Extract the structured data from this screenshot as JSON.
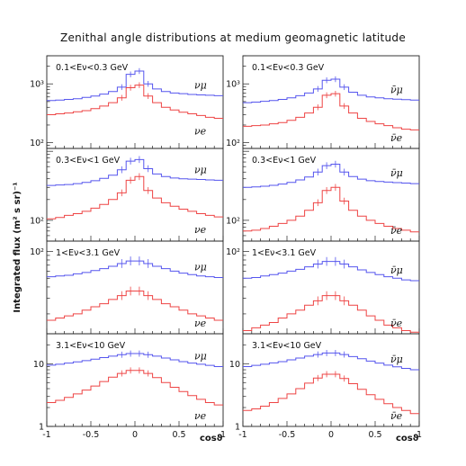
{
  "chart_data": {
    "type": "line",
    "title": "Zenithal angle distributions at medium geomagnetic latitude",
    "xlabel": "cosϑ",
    "ylabel": "Integrated flux (m² s sr)⁻¹",
    "xlim": [
      -1,
      1
    ],
    "x_ticks": [
      "-1",
      "-0.5",
      "0",
      "0.5",
      "1"
    ],
    "y_scale": "log",
    "legend_placement": "inline labels at right of each curve",
    "colors": {
      "numu": "#5555ee",
      "nue": "#ee4444"
    },
    "bin_centers": [
      -0.95,
      -0.85,
      -0.75,
      -0.65,
      -0.55,
      -0.45,
      -0.35,
      -0.25,
      -0.15,
      -0.05,
      0.05,
      0.15,
      0.25,
      0.35,
      0.45,
      0.55,
      0.65,
      0.75,
      0.85,
      0.95
    ],
    "panels": [
      {
        "energy_label": "0.1<Eν<0.3 GeV",
        "particle": "neutrino",
        "ylim": [
          80,
          3000
        ],
        "yticks": [
          {
            "v": 100,
            "t": "10²"
          },
          {
            "v": 1000,
            "t": "10³"
          }
        ],
        "series": [
          {
            "name": "νμ",
            "color_key": "numu",
            "values": [
              520,
              530,
              545,
              560,
              590,
              620,
              670,
              740,
              880,
              1450,
              1650,
              1000,
              820,
              740,
              700,
              680,
              660,
              650,
              640,
              630
            ]
          },
          {
            "name": "νe",
            "color_key": "nue",
            "values": [
              300,
              310,
              320,
              335,
              350,
              380,
              420,
              480,
              580,
              860,
              950,
              620,
              480,
              400,
              360,
              330,
              310,
              290,
              270,
              260
            ]
          }
        ]
      },
      {
        "energy_label": "0.1<Eν<0.3 GeV",
        "particle": "antineutrino",
        "ylim": [
          80,
          3000
        ],
        "yticks": [
          {
            "v": 100,
            "t": "10²"
          },
          {
            "v": 1000,
            "t": "10³"
          }
        ],
        "series": [
          {
            "name": "ν̄μ",
            "color_key": "numu",
            "values": [
              480,
              490,
              505,
              520,
              545,
              580,
              630,
              700,
              820,
              1150,
              1200,
              880,
              720,
              640,
              600,
              580,
              560,
              550,
              540,
              530
            ]
          },
          {
            "name": "ν̄e",
            "color_key": "nue",
            "values": [
              190,
              195,
              200,
              210,
              220,
              240,
              270,
              320,
              400,
              640,
              680,
              420,
              320,
              260,
              230,
              210,
              195,
              180,
              170,
              165
            ]
          }
        ]
      },
      {
        "energy_label": "0.3<Eν<1 GeV",
        "particle": "neutrino",
        "ylim": [
          50,
          1100
        ],
        "yticks": [
          {
            "v": 100,
            "t": "10²"
          }
        ],
        "series": [
          {
            "name": "νμ",
            "color_key": "numu",
            "values": [
              320,
              325,
              330,
              340,
              355,
              375,
              405,
              450,
              540,
              720,
              760,
              560,
              470,
              430,
              410,
              400,
              395,
              390,
              385,
              380
            ]
          },
          {
            "name": "νe",
            "color_key": "nue",
            "values": [
              105,
              110,
              118,
              125,
              135,
              150,
              170,
              200,
              250,
              380,
              430,
              270,
              210,
              180,
              160,
              145,
              135,
              125,
              118,
              112
            ]
          }
        ]
      },
      {
        "energy_label": "0.3<Eν<1 GeV",
        "particle": "antineutrino",
        "ylim": [
          50,
          1100
        ],
        "yticks": [
          {
            "v": 100,
            "t": "10²"
          }
        ],
        "series": [
          {
            "name": "ν̄μ",
            "color_key": "numu",
            "values": [
              300,
              305,
              312,
              322,
              335,
              355,
              385,
              425,
              500,
              620,
              650,
              500,
              430,
              395,
              375,
              365,
              358,
              352,
              346,
              340
            ]
          },
          {
            "name": "ν̄e",
            "color_key": "nue",
            "values": [
              70,
              72,
              76,
              82,
              90,
              100,
              115,
              140,
              180,
              270,
              300,
              190,
              140,
              115,
              100,
              90,
              82,
              76,
              72,
              68
            ]
          }
        ]
      },
      {
        "energy_label": "1<Eν<3.1 GeV",
        "particle": "neutrino",
        "ylim": [
          12,
          130
        ],
        "yticks": [
          {
            "v": 100,
            "t": "10²"
          }
        ],
        "series": [
          {
            "name": "νμ",
            "color_key": "numu",
            "values": [
              52,
              53,
              54,
              56,
              58,
              61,
              64,
              68,
              73,
              78,
              78,
              73,
              68,
              64,
              60,
              57,
              55,
              53,
              52,
              51
            ]
          },
          {
            "name": "νe",
            "color_key": "nue",
            "values": [
              17,
              18,
              19,
              20,
              22,
              24,
              26,
              29,
              32,
              36,
              36,
              32,
              29,
              26,
              24,
              22,
              20,
              19,
              18,
              17
            ]
          }
        ]
      },
      {
        "energy_label": "1<Eν<3.1 GeV",
        "particle": "antineutrino",
        "ylim": [
          12,
          130
        ],
        "yticks": [
          {
            "v": 100,
            "t": "10²"
          }
        ],
        "series": [
          {
            "name": "ν̄μ",
            "color_key": "numu",
            "values": [
              50,
              51,
              53,
              55,
              57,
              60,
              63,
              67,
              72,
              77,
              77,
              72,
              67,
              62,
              58,
              55,
              52,
              50,
              48,
              47
            ]
          },
          {
            "name": "ν̄e",
            "color_key": "nue",
            "values": [
              13,
              14,
              15,
              16,
              18,
              20,
              22,
              25,
              28,
              32,
              32,
              28,
              25,
              22,
              19,
              17,
              15,
              14,
              13,
              12.5
            ]
          }
        ]
      },
      {
        "energy_label": "3.1<Eν<10 GeV",
        "particle": "neutrino",
        "ylim": [
          1,
          30
        ],
        "yticks": [
          {
            "v": 1,
            "t": "1"
          },
          {
            "v": 10,
            "t": "10"
          }
        ],
        "series": [
          {
            "name": "νμ",
            "color_key": "numu",
            "values": [
              9.5,
              9.8,
              10.2,
              10.7,
              11.2,
              11.8,
              12.5,
              13.2,
              13.9,
              14.5,
              14.5,
              13.9,
              13.2,
              12.3,
              11.5,
              10.8,
              10.2,
              9.8,
              9.4,
              9.0
            ]
          },
          {
            "name": "νe",
            "color_key": "nue",
            "values": [
              2.4,
              2.6,
              2.9,
              3.3,
              3.8,
              4.4,
              5.2,
              6.1,
              7.0,
              7.8,
              7.8,
              7.0,
              6.0,
              5.0,
              4.2,
              3.6,
              3.1,
              2.7,
              2.4,
              2.2
            ]
          }
        ]
      },
      {
        "energy_label": "3.1<Eν<10 GeV",
        "particle": "antineutrino",
        "ylim": [
          1,
          30
        ],
        "yticks": [
          {
            "v": 1,
            "t": "1"
          },
          {
            "v": 10,
            "t": "10"
          }
        ],
        "series": [
          {
            "name": "ν̄μ",
            "color_key": "numu",
            "values": [
              9.0,
              9.4,
              9.8,
              10.3,
              10.8,
              11.5,
              12.3,
              13.2,
              14.0,
              14.8,
              14.8,
              14.0,
              13.0,
              12.0,
              11.0,
              10.2,
              9.5,
              8.9,
              8.4,
              8.0
            ]
          },
          {
            "name": "ν̄e",
            "color_key": "nue",
            "values": [
              1.8,
              1.9,
              2.1,
              2.4,
              2.8,
              3.3,
              4.0,
              4.9,
              5.9,
              6.8,
              6.8,
              5.8,
              4.8,
              3.9,
              3.2,
              2.7,
              2.3,
              2.0,
              1.8,
              1.6
            ]
          }
        ]
      }
    ]
  }
}
